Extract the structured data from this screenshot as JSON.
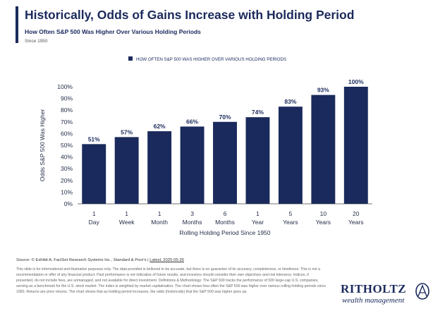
{
  "header": {
    "title": "Historically, Odds of Gains Increase with Holding Period",
    "subtitle": "How Often S&P 500 Was Higher Over Various Holding Periods",
    "since": "Since 1950"
  },
  "chart_data": {
    "type": "bar",
    "categories": [
      [
        "1",
        "Day"
      ],
      [
        "1",
        "Week"
      ],
      [
        "1",
        "Month"
      ],
      [
        "3",
        "Months"
      ],
      [
        "6",
        "Months"
      ],
      [
        "1",
        "Year"
      ],
      [
        "5",
        "Years"
      ],
      [
        "10",
        "Years"
      ],
      [
        "20",
        "Years"
      ]
    ],
    "values": [
      51,
      57,
      62,
      66,
      70,
      74,
      83,
      93,
      100
    ],
    "value_labels": [
      "51%",
      "57%",
      "62%",
      "66%",
      "70%",
      "74%",
      "83%",
      "93%",
      "100%"
    ],
    "legend": "HOW OFTEN S&P 500 WAS HIGHER OVER VARIOUS HOLDING PERIODS",
    "legend_position": "top-center",
    "ylabel": "Odds S&P 500 Was Higher",
    "xlabel": "Rolling Holding Period Since 1950",
    "ylim": [
      0,
      100
    ],
    "yticks": [
      0,
      10,
      20,
      30,
      40,
      50,
      60,
      70,
      80,
      90,
      100
    ],
    "ytick_labels": [
      "0%",
      "10%",
      "20%",
      "30%",
      "40%",
      "50%",
      "60%",
      "70%",
      "80%",
      "90%",
      "100%"
    ],
    "grid": false,
    "bar_color": "#1b2a5c"
  },
  "footer": {
    "source_prefix": "Source: © Exhibit A, FactSet Research Systems Inc., Standard & Poor's |",
    "source_latest": "Latest: 2025-05-26",
    "disclaimer": "This slide is for informational and illustrative purposes only. The data provided is believed to be accurate, but there is no guarantee of its accuracy, completeness, or timeliness. This is not a recommendation or offer of any financial product. Past performance is not indicative of future results, and investors should consider their own objectives and risk tolerance. Indices, if presented, do not include fees, are unmanaged, and not available for direct investment. Definitions & Methodology: The S&P 500 tracks the performance of 500 large-cap U.S. companies, serving as a benchmark for the U.S. stock market. The index is weighted by market capitalization. The chart shows how often the S&P 500 was higher over various rolling holding periods since 1950. Returns are price returns. The chart shows that as holding period increases, the odds (historically) that the S&P 500 was higher goes up."
  },
  "logo": {
    "name": "RITHOLTZ",
    "sub": "wealth management"
  }
}
